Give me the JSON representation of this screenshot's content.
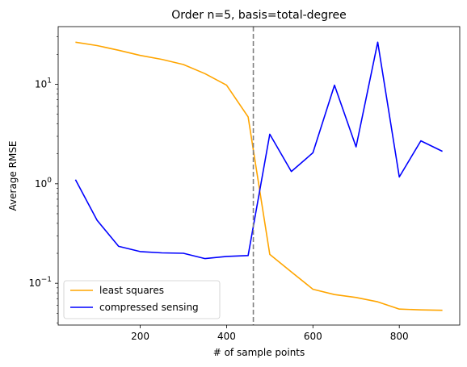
{
  "chart_data": {
    "type": "line",
    "title": "Order n=5, basis=total-degree",
    "xlabel": "# of sample points",
    "ylabel": "Average RMSE",
    "xlim": [
      10,
      940
    ],
    "ylim": [
      0.038,
      38
    ],
    "yscale": "log",
    "x_ticks": [
      200,
      400,
      600,
      800
    ],
    "x_tick_labels": [
      "200",
      "400",
      "600",
      "800"
    ],
    "y_ticks": [
      0.1,
      1,
      10
    ],
    "y_tick_labels": [
      {
        "base": "10",
        "exp": "−1"
      },
      {
        "base": "10",
        "exp": "0"
      },
      {
        "base": "10",
        "exp": "1"
      }
    ],
    "grid": false,
    "legend_position": "lower-left",
    "reference_line": {
      "x": 462,
      "color": "#808080",
      "style": "dashed"
    },
    "x": [
      50,
      100,
      150,
      200,
      250,
      300,
      350,
      400,
      450,
      500,
      550,
      600,
      650,
      700,
      750,
      800,
      850,
      900
    ],
    "series": [
      {
        "name": "least squares",
        "color": "#ffa500",
        "values": [
          26.5,
          24.5,
          22.0,
          19.5,
          17.8,
          15.8,
          12.8,
          9.8,
          4.7,
          0.195,
          0.13,
          0.087,
          0.077,
          0.072,
          0.065,
          0.055,
          0.054,
          0.0535
        ]
      },
      {
        "name": "compressed sensing",
        "color": "#0000ff",
        "values": [
          1.1,
          0.43,
          0.235,
          0.208,
          0.202,
          0.2,
          0.177,
          0.186,
          0.19,
          3.15,
          1.33,
          2.05,
          9.8,
          2.35,
          26.5,
          1.17,
          2.7,
          2.12
        ]
      }
    ]
  }
}
